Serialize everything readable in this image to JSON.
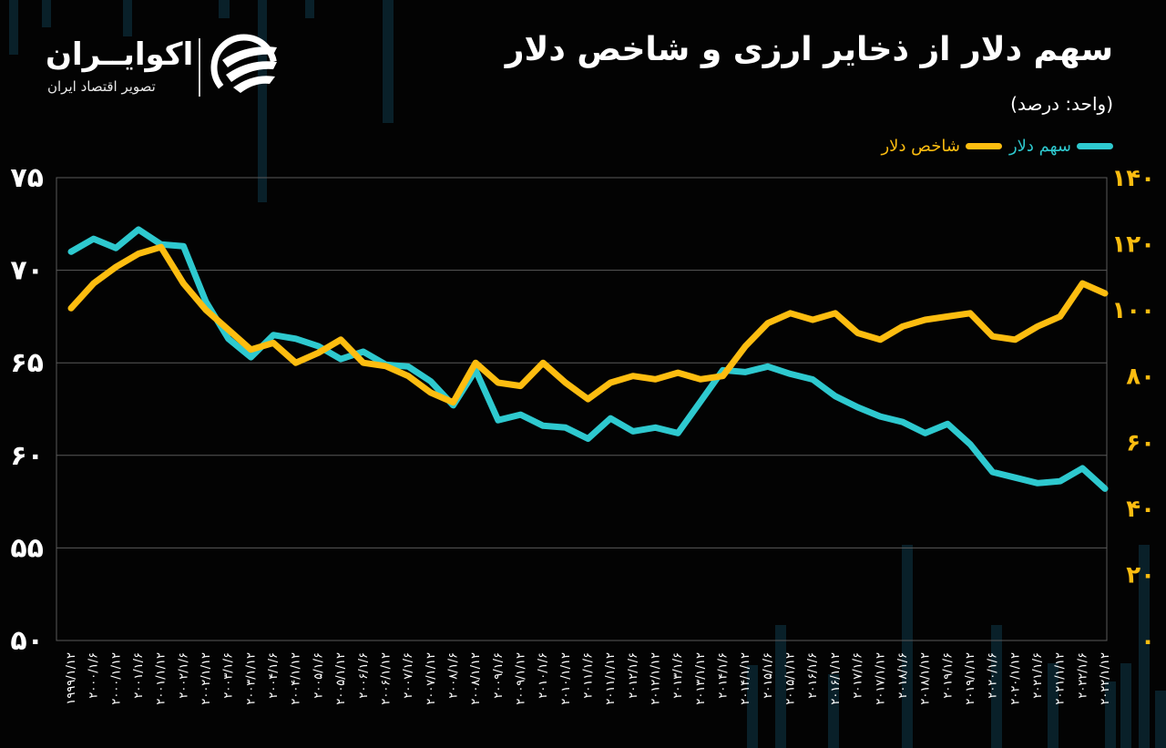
{
  "header": {
    "title": "سهم دلار از ذخایر ارزی و شاخص دلار",
    "unit": "(واحد: درصد)"
  },
  "logo": {
    "name": "اکوایــران",
    "subtitle": "تصویر اقتصاد ایران"
  },
  "legend": [
    {
      "label": "سهم دلار",
      "color": "#2ec9cf"
    },
    {
      "label": "شاخص دلار",
      "color": "#fdbd10"
    }
  ],
  "colors": {
    "background": "#030303",
    "teal": "#2ec9cf",
    "yellow": "#fdbd10",
    "grid": "#5a5a5a",
    "bgbar": "#0b2630"
  },
  "chart_data": {
    "type": "line",
    "title": "سهم دلار از ذخایر ارزی و شاخص دلار",
    "subtitle": "(واحد: درصد)",
    "xlabel": "",
    "ylabel_left": "سهم دلار (%)",
    "ylabel_right": "شاخص دلار",
    "ylim_left": [
      50,
      75
    ],
    "ylim_right": [
      0,
      140
    ],
    "yticks_left": [
      "۷۵",
      "۷۰",
      "۶۵",
      "۶۰",
      "۵۵",
      "۵۰"
    ],
    "yticks_right": [
      "۱۴۰",
      "۱۲۰",
      "۱۰۰",
      "۸۰",
      "۶۰",
      "۴۰",
      "۲۰",
      "۰"
    ],
    "grid": true,
    "legend_position": "top-right",
    "x": [
      "1999/1/12",
      "2000/1/6",
      "2000/1/12",
      "2001/1/6",
      "2001/1/12",
      "2002/1/6",
      "2002/1/12",
      "2003/1/6",
      "2003/1/12",
      "2004/1/6",
      "2004/1/12",
      "2005/1/6",
      "2005/1/12",
      "2006/1/6",
      "2006/1/12",
      "2007/1/6",
      "2007/1/12",
      "2008/1/6",
      "2008/1/12",
      "2009/1/6",
      "2009/1/12",
      "2010/1/6",
      "2010/1/12",
      "2011/1/6",
      "2011/1/12",
      "2012/1/6",
      "2012/1/12",
      "2013/1/6",
      "2013/1/12",
      "2014/1/6",
      "2014/1/12",
      "2015/1/6",
      "2015/1/12",
      "2016/1/6",
      "2016/1/12",
      "2017/1/6",
      "2017/1/12",
      "2018/1/6",
      "2018/1/12",
      "2019/1/6",
      "2019/1/12",
      "2020/1/6",
      "2020/1/12",
      "2021/1/6",
      "2021/1/12",
      "2022/1/6",
      "2022/1/12"
    ],
    "x_tick_labels": [
      "۱۹۹۹/۱/۱۲",
      "۲۰۰۰/۱/۶",
      "۲۰۰۰/۱/۱۲",
      "۲۰۰۱/۱/۶",
      "۲۰۰۱/۱/۱۲",
      "۲۰۰۲/۱/۶",
      "۲۰۰۲/۱/۱۲",
      "۲۰۰۳/۱/۶",
      "۲۰۰۳/۱/۱۲",
      "۲۰۰۴/۱/۶",
      "۲۰۰۴/۱/۱۲",
      "۲۰۰۵/۱/۶",
      "۲۰۰۵/۱/۱۲",
      "۲۰۰۶/۱/۶",
      "۲۰۰۶/۱/۱۲",
      "۲۰۰۷/۱/۶",
      "۲۰۰۷/۱/۱۲",
      "۲۰۰۸/۱/۶",
      "۲۰۰۸/۱/۱۲",
      "۲۰۰۹/۱/۶",
      "۲۰۰۹/۱/۱۲",
      "۲۰۱۰/۱/۶",
      "۲۰۱۰/۱/۱۲",
      "۲۰۱۱/۱/۶",
      "۲۰۱۱/۱/۱۲",
      "۲۰۱۲/۱/۶",
      "۲۰۱۲/۱/۱۲",
      "۲۰۱۳/۱/۶",
      "۲۰۱۳/۱/۱۲",
      "۲۰۱۴/۱/۶",
      "۲۰۱۴/۱/۱۲",
      "۲۰۱۵/۱/۶",
      "۲۰۱۵/۱/۱۲",
      "۲۰۱۶/۱/۶",
      "۲۰۱۶/۱/۱۲",
      "۲۰۱۷/۱/۶",
      "۲۰۱۷/۱/۱۲",
      "۲۰۱۸/۱/۶",
      "۲۰۱۸/۱/۱۲",
      "۲۰۱۹/۱/۶",
      "۲۰۱۹/۱/۱۲",
      "۲۰۲۰/۱/۶",
      "۲۰۲۰/۱/۱۲",
      "۲۰۲۱/۱/۶",
      "۲۰۲۱/۱/۱۲",
      "۲۰۲۲/۱/۶",
      "۲۰۲۲/۱/۱۲"
    ],
    "series": [
      {
        "name": "سهم دلار",
        "axis": "left",
        "color": "#2ec9cf",
        "values": [
          71.0,
          71.7,
          71.2,
          72.2,
          71.4,
          71.3,
          68.3,
          66.3,
          65.3,
          66.5,
          66.3,
          65.9,
          65.2,
          65.6,
          64.9,
          64.8,
          64.0,
          62.7,
          64.6,
          61.9,
          62.2,
          61.6,
          61.5,
          60.9,
          62.0,
          61.3,
          61.5,
          61.2,
          62.9,
          64.6,
          64.5,
          64.8,
          64.4,
          64.1,
          63.2,
          62.6,
          62.1,
          61.8,
          61.2,
          61.7,
          60.6,
          59.1,
          58.8,
          58.5,
          58.6,
          59.3,
          58.2
        ]
      },
      {
        "name": "شاخص دلار",
        "axis": "right",
        "color": "#fdbd10",
        "values": [
          100.5,
          108,
          113,
          117,
          119,
          108,
          100,
          94,
          88,
          90,
          84,
          87,
          91,
          84,
          83,
          80,
          75,
          72,
          84,
          78,
          77,
          84,
          78,
          73,
          78,
          80,
          79,
          81,
          79,
          80,
          89,
          96,
          99,
          97,
          99,
          93,
          91,
          95,
          97,
          98,
          99,
          92,
          91,
          95,
          98,
          108,
          105
        ]
      }
    ]
  }
}
